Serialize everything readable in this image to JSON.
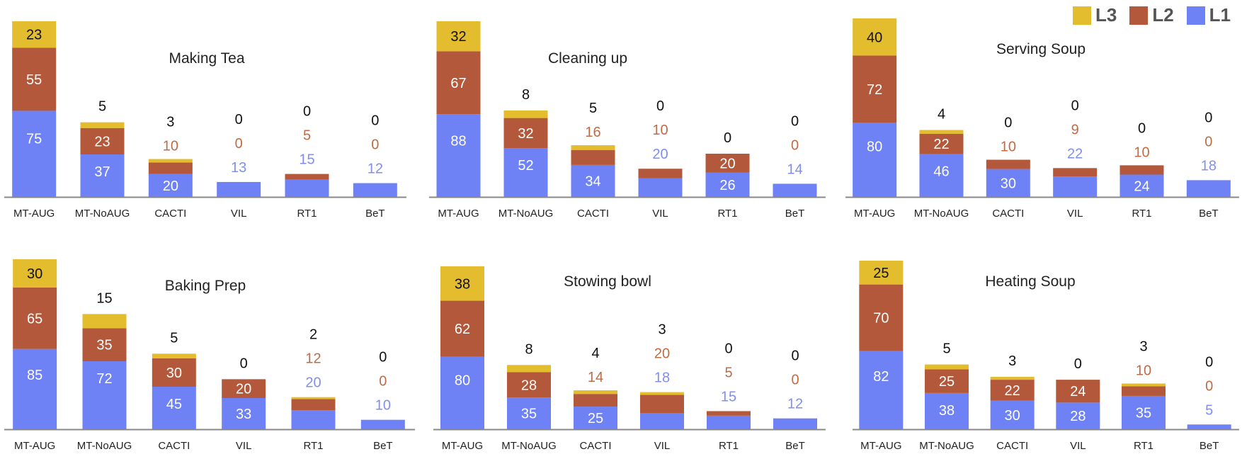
{
  "colors": {
    "L1": "#6e82f5",
    "L2": "#b3583a",
    "L3": "#e3bd2d",
    "axis": "#888888",
    "tick": "#222222",
    "title": "#222222",
    "annL3": "#111111",
    "annL2": "#bf6b45",
    "annL1": "#7f8ff0"
  },
  "legend": [
    {
      "label": "L3",
      "color": "#e3bd2d"
    },
    {
      "label": "L2",
      "color": "#b3583a"
    },
    {
      "label": "L1",
      "color": "#6e82f5"
    }
  ],
  "chart_data": [
    {
      "type": "stacked-bar",
      "title": "Making Tea",
      "categories": [
        "MT-AUG",
        "MT-NoAUG",
        "CACTI",
        "VIL",
        "RT1",
        "BeT"
      ],
      "series": [
        {
          "name": "L1",
          "values": [
            75,
            37,
            20,
            13,
            15,
            12
          ]
        },
        {
          "name": "L2",
          "values": [
            55,
            23,
            10,
            0,
            5,
            0
          ]
        },
        {
          "name": "L3",
          "values": [
            23,
            5,
            3,
            0,
            0,
            0
          ]
        }
      ],
      "ylim": [
        0,
        153
      ]
    },
    {
      "type": "stacked-bar",
      "title": "Cleaning up",
      "categories": [
        "MT-AUG",
        "MT-NoAUG",
        "CACTI",
        "VIL",
        "RT1",
        "BeT"
      ],
      "series": [
        {
          "name": "L1",
          "values": [
            88,
            52,
            34,
            20,
            26,
            14
          ]
        },
        {
          "name": "L2",
          "values": [
            67,
            32,
            16,
            10,
            20,
            0
          ]
        },
        {
          "name": "L3",
          "values": [
            32,
            8,
            5,
            0,
            0,
            0
          ]
        }
      ],
      "ylim": [
        0,
        187
      ]
    },
    {
      "type": "stacked-bar",
      "title": "Serving Soup",
      "categories": [
        "MT-AUG",
        "MT-NoAUG",
        "CACTI",
        "VIL",
        "RT1",
        "BeT"
      ],
      "series": [
        {
          "name": "L1",
          "values": [
            80,
            46,
            30,
            22,
            24,
            18
          ]
        },
        {
          "name": "L2",
          "values": [
            72,
            22,
            10,
            9,
            10,
            0
          ]
        },
        {
          "name": "L3",
          "values": [
            40,
            4,
            0,
            0,
            0,
            0
          ]
        }
      ],
      "ylim": [
        0,
        192
      ]
    },
    {
      "type": "stacked-bar",
      "title": "Baking Prep",
      "categories": [
        "MT-AUG",
        "MT-NoAUG",
        "CACTI",
        "VIL",
        "RT1",
        "BeT"
      ],
      "series": [
        {
          "name": "L1",
          "values": [
            85,
            72,
            45,
            33,
            20,
            10
          ]
        },
        {
          "name": "L2",
          "values": [
            65,
            35,
            30,
            20,
            12,
            0
          ]
        },
        {
          "name": "L3",
          "values": [
            30,
            15,
            5,
            0,
            2,
            0
          ]
        }
      ],
      "ylim": [
        0,
        180
      ]
    },
    {
      "type": "stacked-bar",
      "title": "Stowing bowl",
      "categories": [
        "MT-AUG",
        "MT-NoAUG",
        "CACTI",
        "VIL",
        "RT1",
        "BeT"
      ],
      "series": [
        {
          "name": "L1",
          "values": [
            80,
            35,
            25,
            18,
            15,
            12
          ]
        },
        {
          "name": "L2",
          "values": [
            62,
            28,
            14,
            20,
            5,
            0
          ]
        },
        {
          "name": "L3",
          "values": [
            38,
            8,
            4,
            3,
            0,
            0
          ]
        }
      ],
      "ylim": [
        0,
        180
      ]
    },
    {
      "type": "stacked-bar",
      "title": "Heating Soup",
      "categories": [
        "MT-AUG",
        "MT-NoAUG",
        "CACTI",
        "VIL",
        "RT1",
        "BeT"
      ],
      "series": [
        {
          "name": "L1",
          "values": [
            82,
            38,
            30,
            28,
            35,
            5
          ]
        },
        {
          "name": "L2",
          "values": [
            70,
            25,
            22,
            24,
            10,
            0
          ]
        },
        {
          "name": "L3",
          "values": [
            25,
            5,
            3,
            0,
            3,
            0
          ]
        }
      ],
      "ylim": [
        0,
        177
      ]
    }
  ]
}
